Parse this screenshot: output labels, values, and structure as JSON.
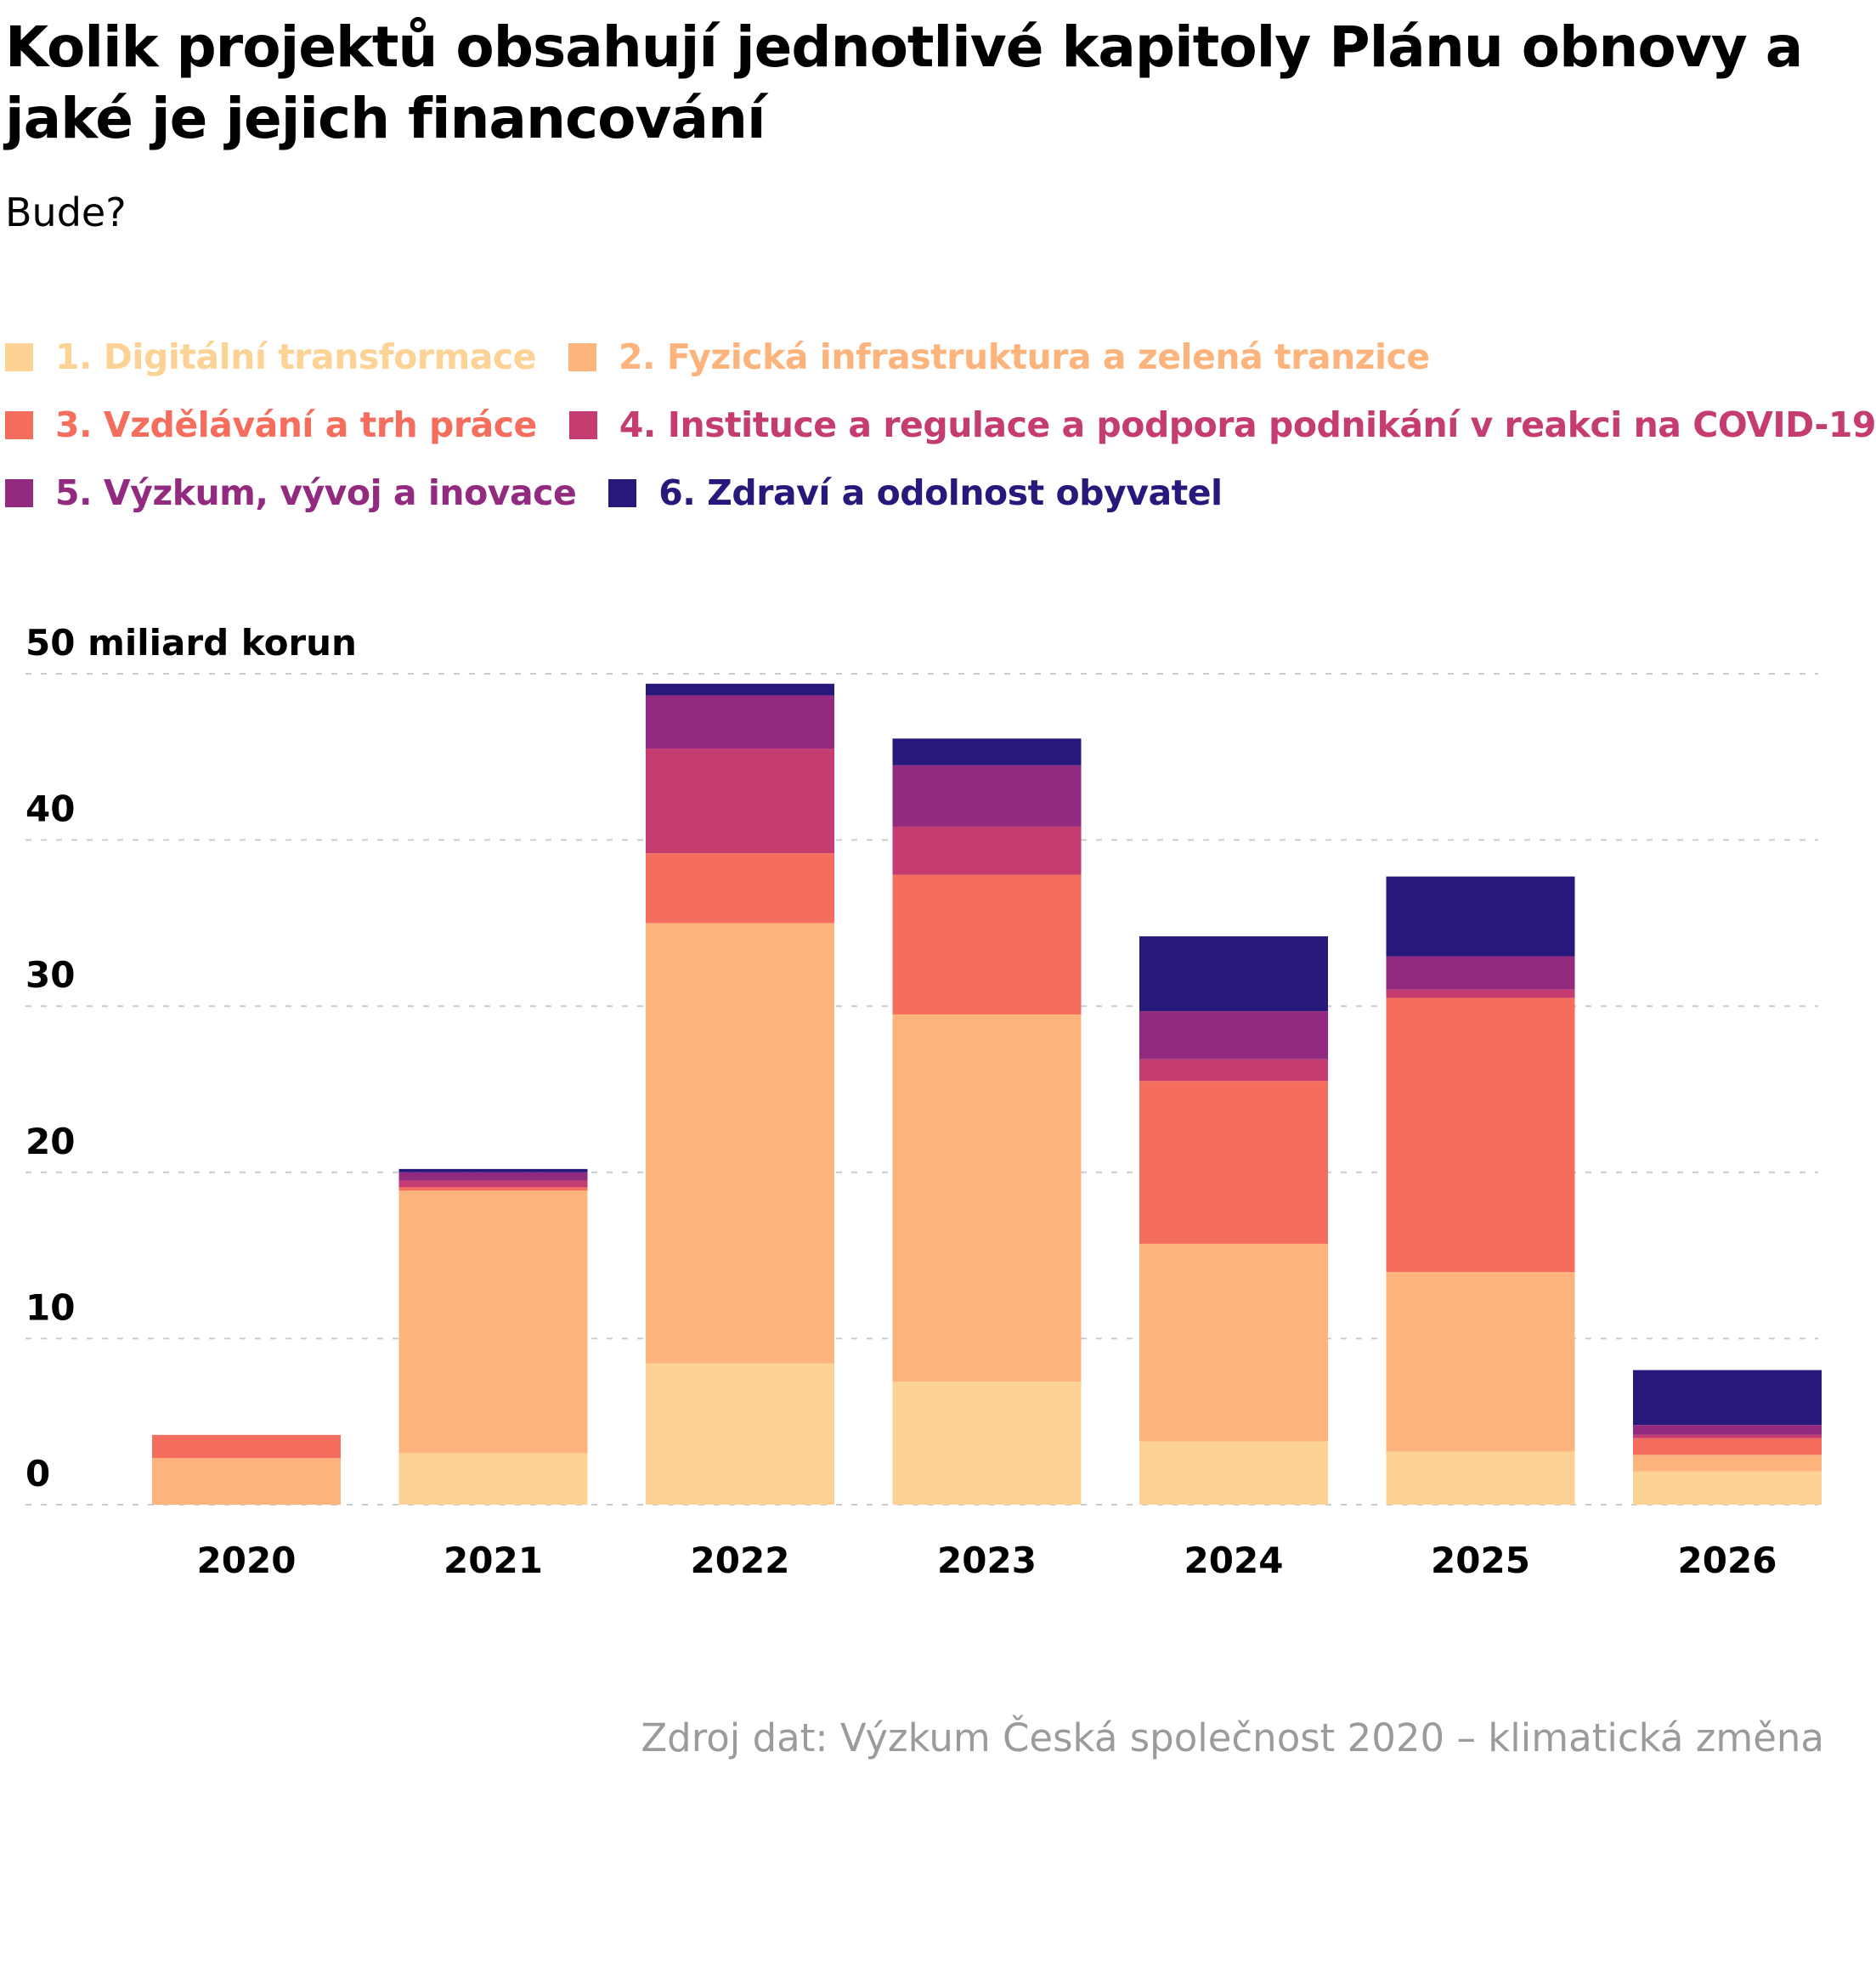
{
  "title": "Kolik projektů obsahují jednotlivé kapitoly Plánu obnovy a jaké je jejich financování",
  "subtitle": "Bude?",
  "source": "Zdroj dat: Výzkum Česká společnost 2020 – klimatická změna",
  "legend_rows": [
    [
      {
        "label": "1. Digitální transformace",
        "color": "#fdd295"
      },
      {
        "label": "2. Fyzická infrastruktura a zelená tranzice",
        "color": "#fdb47c"
      }
    ],
    [
      {
        "label": "3. Vzdělávání a trh práce",
        "color": "#f56e5d"
      },
      {
        "label": "4. Instituce a regulace a podpora podnikání v reakci na COVID-19",
        "color": "#c53c71"
      }
    ],
    [
      {
        "label": "5. Výzkum, vývoj a inovace",
        "color": "#922b7f"
      },
      {
        "label": "6. Zdraví a odolnost obyvatel",
        "color": "#27197b"
      }
    ]
  ],
  "chart_data": {
    "type": "bar",
    "stacked": true,
    "ylabel": "miliard korun",
    "ylim": [
      0,
      50
    ],
    "yticks": [
      "0",
      "10",
      "20",
      "30",
      "40",
      "50 miliard korun"
    ],
    "grid": true,
    "categories": [
      "2020",
      "2021",
      "2022",
      "2023",
      "2024",
      "2025",
      "2026"
    ],
    "series": [
      {
        "name": "1. Digitální transformace",
        "color": "#fdd295",
        "values": [
          0,
          3.1,
          8.5,
          7.4,
          3.8,
          3.2,
          2.0
        ]
      },
      {
        "name": "2. Fyzická infrastruktura a zelená tranzice",
        "color": "#fdb47c",
        "values": [
          2.8,
          15.8,
          26.5,
          22.1,
          11.9,
          10.8,
          1.0
        ]
      },
      {
        "name": "3. Vzdělávání a trh práce",
        "color": "#f56e5d",
        "values": [
          1.4,
          0.2,
          4.2,
          8.4,
          9.8,
          16.5,
          1.0
        ]
      },
      {
        "name": "4. Instituce a regulace a podpora podnikání v reakci na COVID-19",
        "color": "#c53c71",
        "values": [
          0,
          0.4,
          6.3,
          2.9,
          1.3,
          0.5,
          0.2
        ]
      },
      {
        "name": "5. Výzkum, vývoj a inovace",
        "color": "#922b7f",
        "values": [
          0,
          0.5,
          3.2,
          3.7,
          2.9,
          2.0,
          0.6
        ]
      },
      {
        "name": "6. Zdraví a odolnost obyvatel",
        "color": "#27197b",
        "values": [
          0,
          0.2,
          0.7,
          1.6,
          4.5,
          4.8,
          3.3
        ]
      }
    ]
  }
}
